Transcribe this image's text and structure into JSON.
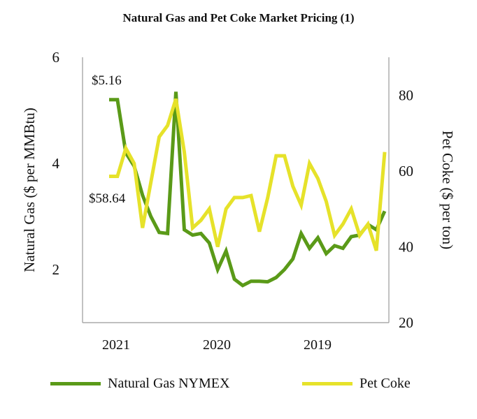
{
  "chart_data": {
    "type": "line",
    "title": "Natural Gas and Pet Coke Market Pricing (1)",
    "x_tick_labels": [
      "2021",
      "2020",
      "2019"
    ],
    "y_left": {
      "label": "Natural Gas ($ per MMBtu)",
      "range": [
        1,
        6
      ],
      "ticks": [
        2,
        4,
        6
      ]
    },
    "y_right": {
      "label": "Pet Coke ($ per ton)",
      "range": [
        20,
        90
      ],
      "ticks": [
        20,
        40,
        60,
        80
      ]
    },
    "annotations": [
      "$5.16",
      "$58.64"
    ],
    "series": [
      {
        "name": "Natural Gas NYMEX",
        "axis": "left",
        "color": "#5a9a18",
        "values": [
          5.2,
          5.2,
          4.2,
          3.95,
          3.4,
          3.0,
          2.7,
          2.68,
          5.35,
          2.75,
          2.65,
          2.68,
          2.5,
          2.0,
          2.35,
          1.82,
          1.7,
          1.78,
          1.78,
          1.77,
          1.85,
          2.0,
          2.2,
          2.68,
          2.4,
          2.6,
          2.3,
          2.45,
          2.4,
          2.62,
          2.65,
          2.85,
          2.75,
          3.1
        ]
      },
      {
        "name": "Pet Coke",
        "axis": "right",
        "color": "#e6e22a",
        "values": [
          58.6,
          58.6,
          66,
          62,
          45,
          57,
          69,
          72,
          79,
          65,
          45,
          47,
          50,
          40,
          50,
          53,
          53,
          53.5,
          44,
          53,
          64,
          64,
          56,
          51,
          62,
          58,
          52,
          43,
          46,
          50,
          43,
          46,
          39,
          65
        ]
      }
    ]
  }
}
